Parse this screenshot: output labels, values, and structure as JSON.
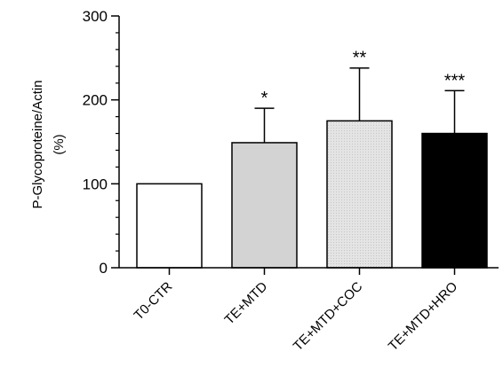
{
  "chart_data": {
    "type": "bar",
    "categories": [
      "T0-CTR",
      "TE+MTD",
      "TE+MTD+COC",
      "TE+MTD+HRO"
    ],
    "values": [
      100,
      149,
      175,
      160
    ],
    "error_upper": [
      100,
      190,
      238,
      211
    ],
    "significance": [
      "",
      "*",
      "**",
      "***"
    ],
    "bar_colors": [
      "#ffffff",
      "#d3d3d3",
      "#e2e2e2",
      "#000000"
    ],
    "ylabel_line1": "P-Glycoproteine/Actin",
    "ylabel_line2": "(%)",
    "ylim": [
      0,
      300
    ],
    "yticks": [
      0,
      100,
      200,
      300
    ],
    "yticks_minor_step": 20,
    "grid": false,
    "legend": "none"
  }
}
